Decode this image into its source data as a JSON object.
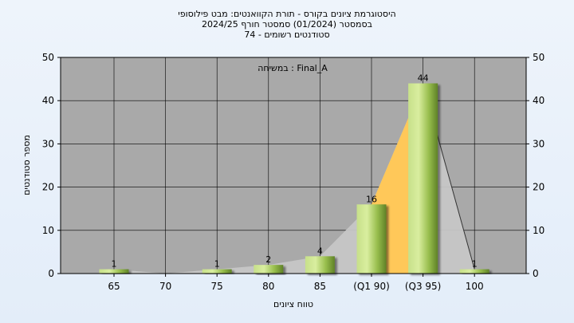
{
  "chart_data": {
    "type": "bar",
    "title_lines": [
      "היסטוגרמת ציונים בקורס - תורת הקוואנטים: מבט פילוסופי",
      "בסמסטר  (01/2024)  סמסטר חורף 2024/25",
      "סטודנטים רשומים - 74"
    ],
    "annotation": "במשיחה : Final_A",
    "xlabel": "טווח ציונים",
    "ylabel": "מספר סטודנטים",
    "categories": [
      "65",
      "70",
      "75",
      "80",
      "85",
      "(Q1 90)",
      "(Q3 95)",
      "100"
    ],
    "values": [
      1,
      0,
      1,
      2,
      4,
      16,
      44,
      1
    ],
    "value_labels": [
      "1",
      "",
      "1",
      "2",
      "4",
      "16",
      "44",
      "1"
    ],
    "ylim": [
      0,
      50
    ],
    "yticks": [
      0,
      10,
      20,
      30,
      40,
      50
    ],
    "grid": true,
    "colors": {
      "plot_bg": "#a9a9a9",
      "bar_light": "#d4ea9a",
      "bar_mid": "#9dc24f",
      "bar_dark": "#5a7d23",
      "quartile_band": "#ffc859",
      "distribution": "#c6c6c6"
    }
  }
}
